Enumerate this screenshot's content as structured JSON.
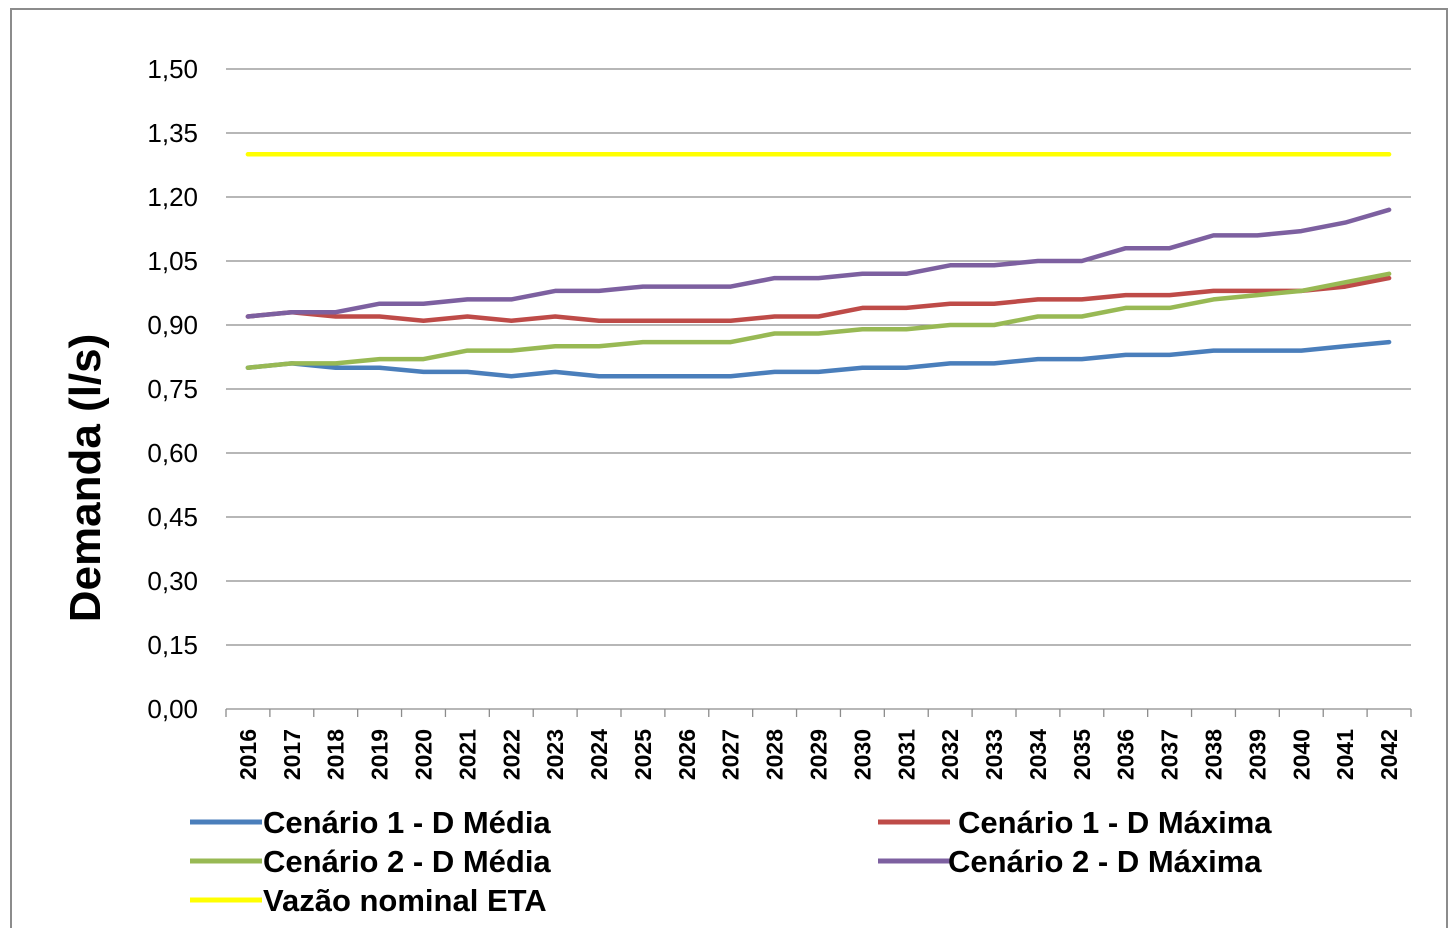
{
  "chart_data": {
    "type": "line",
    "title": "",
    "xlabel": "",
    "ylabel": "Demanda (l/s)",
    "ylim": [
      0,
      1.5
    ],
    "yticks": [
      "0,00",
      "0,15",
      "0,30",
      "0,45",
      "0,60",
      "0,75",
      "0,90",
      "1,05",
      "1,20",
      "1,35",
      "1,50"
    ],
    "grid": true,
    "legend_position": "bottom",
    "x": [
      "2016",
      "2017",
      "2018",
      "2019",
      "2020",
      "2021",
      "2022",
      "2023",
      "2024",
      "2025",
      "2026",
      "2027",
      "2028",
      "2029",
      "2030",
      "2031",
      "2032",
      "2033",
      "2034",
      "2035",
      "2036",
      "2037",
      "2038",
      "2039",
      "2040",
      "2041",
      "2042"
    ],
    "series": [
      {
        "name": "Cenário 1 - D Média",
        "color": "#4a7ebb",
        "values": [
          0.8,
          0.81,
          0.8,
          0.8,
          0.79,
          0.79,
          0.78,
          0.79,
          0.78,
          0.78,
          0.78,
          0.78,
          0.79,
          0.79,
          0.8,
          0.8,
          0.81,
          0.81,
          0.82,
          0.82,
          0.83,
          0.83,
          0.84,
          0.84,
          0.84,
          0.85,
          0.86
        ]
      },
      {
        "name": "Cenário 1 - D Máxima",
        "color": "#be4b48",
        "values": [
          0.92,
          0.93,
          0.92,
          0.92,
          0.91,
          0.92,
          0.91,
          0.92,
          0.91,
          0.91,
          0.91,
          0.91,
          0.92,
          0.92,
          0.94,
          0.94,
          0.95,
          0.95,
          0.96,
          0.96,
          0.97,
          0.97,
          0.98,
          0.98,
          0.98,
          0.99,
          1.01
        ]
      },
      {
        "name": "Cenário 2 - D Média",
        "color": "#98b954",
        "values": [
          0.8,
          0.81,
          0.81,
          0.82,
          0.82,
          0.84,
          0.84,
          0.85,
          0.85,
          0.86,
          0.86,
          0.86,
          0.88,
          0.88,
          0.89,
          0.89,
          0.9,
          0.9,
          0.92,
          0.92,
          0.94,
          0.94,
          0.96,
          0.97,
          0.98,
          1.0,
          1.02
        ]
      },
      {
        "name": "Cenário 2  - D Máxima",
        "color": "#7d60a0",
        "values": [
          0.92,
          0.93,
          0.93,
          0.95,
          0.95,
          0.96,
          0.96,
          0.98,
          0.98,
          0.99,
          0.99,
          0.99,
          1.01,
          1.01,
          1.02,
          1.02,
          1.04,
          1.04,
          1.05,
          1.05,
          1.08,
          1.08,
          1.11,
          1.11,
          1.12,
          1.14,
          1.17
        ]
      },
      {
        "name": "Vazão nominal ETA",
        "color": "#ffff00",
        "values": [
          1.3,
          1.3,
          1.3,
          1.3,
          1.3,
          1.3,
          1.3,
          1.3,
          1.3,
          1.3,
          1.3,
          1.3,
          1.3,
          1.3,
          1.3,
          1.3,
          1.3,
          1.3,
          1.3,
          1.3,
          1.3,
          1.3,
          1.3,
          1.3,
          1.3,
          1.3,
          1.3
        ]
      }
    ]
  }
}
